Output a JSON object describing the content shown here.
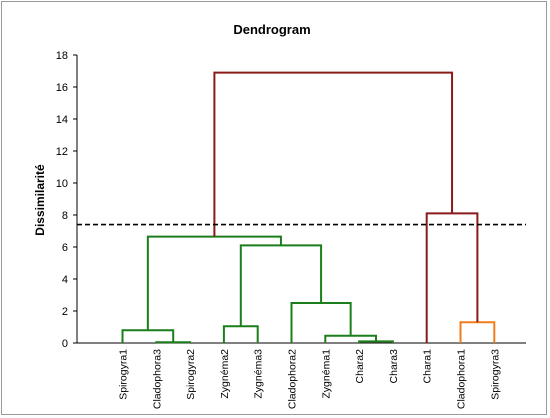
{
  "chart_data": {
    "type": "dendrogram",
    "title": "Dendrogram",
    "ylabel": "Dissimilarité",
    "xlabel": "",
    "ylim": [
      0,
      18
    ],
    "yticks": [
      0,
      2,
      4,
      6,
      8,
      10,
      12,
      14,
      16,
      18
    ],
    "grid": false,
    "legend": "none",
    "leaves": [
      "Spirogyra1",
      "Cladophora3",
      "Spirogyra2",
      "Zygnéma2",
      "Zygnéma3",
      "Cladophora2",
      "Zygnéma1",
      "Chara2",
      "Chara3",
      "Chara1",
      "Cladophora1",
      "Spirogyra3"
    ],
    "merges": [
      {
        "a": "L1",
        "b": "L2",
        "height": 0.05,
        "color": "#1a7f1a"
      },
      {
        "a": "L7",
        "b": "L8",
        "height": 0.1,
        "color": "#1a7f1a"
      },
      {
        "a": "L6",
        "b": "M1",
        "height": 0.45,
        "color": "#1a7f1a"
      },
      {
        "a": "L0",
        "b": "M0",
        "height": 0.8,
        "color": "#1a7f1a"
      },
      {
        "a": "L3",
        "b": "L4",
        "height": 1.05,
        "color": "#1a7f1a"
      },
      {
        "a": "L10",
        "b": "L11",
        "height": 1.3,
        "color": "#f07c1e"
      },
      {
        "a": "L5",
        "b": "M2",
        "height": 2.5,
        "color": "#1a7f1a"
      },
      {
        "a": "M4",
        "b": "M6",
        "height": 6.1,
        "color": "#1a7f1a"
      },
      {
        "a": "M3",
        "b": "M7",
        "height": 6.65,
        "color": "#1a7f1a"
      },
      {
        "a": "L9",
        "b": "M5",
        "height": 8.1,
        "color": "#8b1a1a"
      },
      {
        "a": "M8",
        "b": "M9",
        "height": 16.9,
        "color": "#8b1a1a"
      }
    ],
    "cut_line": 7.4,
    "colors": {
      "axis": "#000000",
      "cut_line": "#000000"
    }
  }
}
